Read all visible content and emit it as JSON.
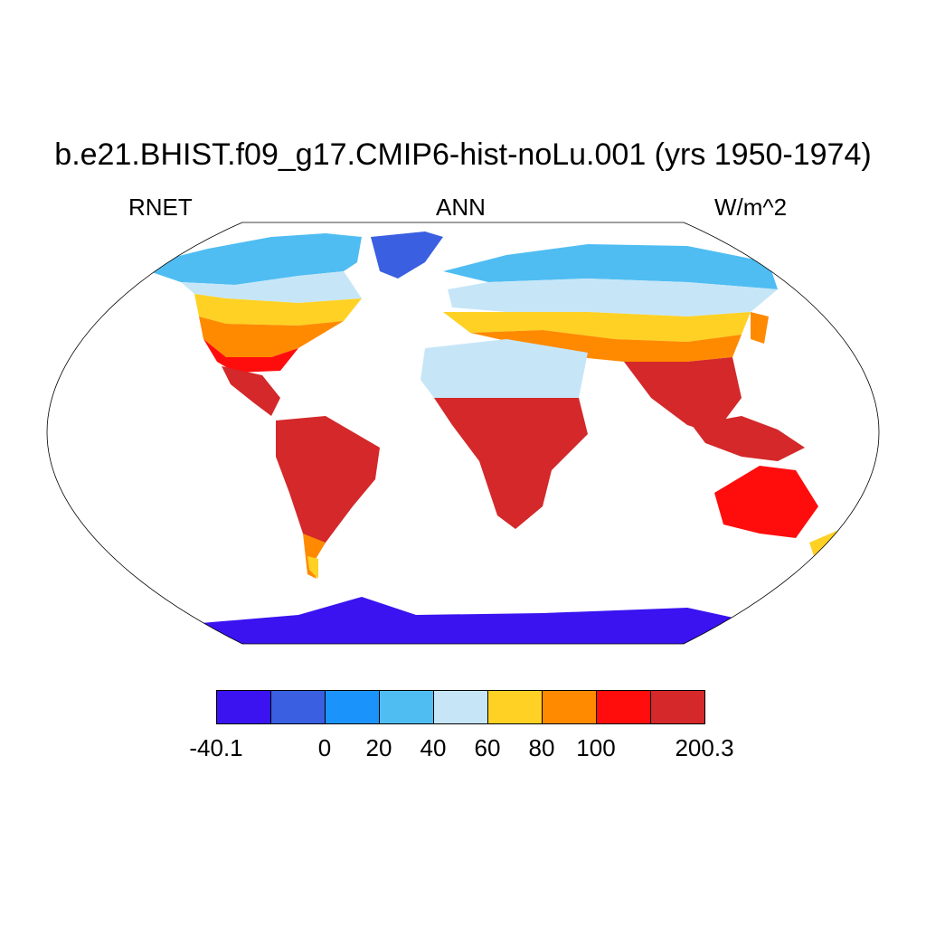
{
  "title": "b.e21.BHIST.f09_g17.CMIP6-hist-noLu.001 (yrs 1950-1974)",
  "left_label": "RNET",
  "center_label": "ANN",
  "right_label": "W/m^2",
  "colorbar": {
    "colors": [
      "#3a13f0",
      "#3a5fe0",
      "#1a94fa",
      "#4fbdf2",
      "#c6e6f8",
      "#ffd124",
      "#ff8a00",
      "#ff0d0d",
      "#d4282a"
    ],
    "labels": [
      "-40.1",
      "0",
      "20",
      "40",
      "60",
      "80",
      "100",
      "200.3"
    ]
  },
  "map": {
    "projection": "Robinson",
    "ocean_color": "#ffffff",
    "continent_outline_color": "#000000"
  }
}
